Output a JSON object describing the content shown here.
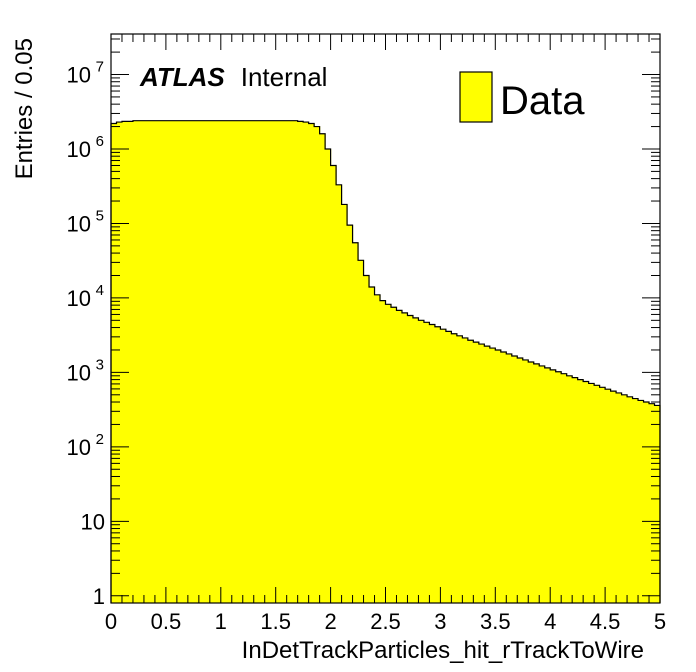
{
  "chart_data": {
    "type": "histogram",
    "xlabel": "InDetTrackParticles_hit_rTrackToWire",
    "ylabel": "Entries / 0.05",
    "yscale": "log",
    "xlim": [
      0,
      5
    ],
    "ylim": [
      0.8,
      35000000
    ],
    "bin_width": 0.05,
    "x_ticks": [
      {
        "value": 0,
        "label": "0"
      },
      {
        "value": 0.5,
        "label": "0.5"
      },
      {
        "value": 1,
        "label": "1"
      },
      {
        "value": 1.5,
        "label": "1.5"
      },
      {
        "value": 2,
        "label": "2"
      },
      {
        "value": 2.5,
        "label": "2.5"
      },
      {
        "value": 3,
        "label": "3"
      },
      {
        "value": 3.5,
        "label": "3.5"
      },
      {
        "value": 4,
        "label": "4"
      },
      {
        "value": 4.5,
        "label": "4.5"
      },
      {
        "value": 5,
        "label": "5"
      }
    ],
    "y_ticks": [
      {
        "value": 1,
        "label": "1",
        "exp": ""
      },
      {
        "value": 10,
        "label": "10",
        "exp": ""
      },
      {
        "value": 100,
        "label": "10",
        "exp": "2"
      },
      {
        "value": 1000,
        "label": "10",
        "exp": "3"
      },
      {
        "value": 10000,
        "label": "10",
        "exp": "4"
      },
      {
        "value": 100000,
        "label": "10",
        "exp": "5"
      },
      {
        "value": 1000000,
        "label": "10",
        "exp": "6"
      },
      {
        "value": 10000000,
        "label": "10",
        "exp": "7"
      }
    ],
    "series": [
      {
        "name": "Data",
        "fill_color": "#ffff00",
        "line_color": "#000000",
        "values": [
          2200000,
          2300000,
          2350000,
          2350000,
          2400000,
          2400000,
          2400000,
          2400000,
          2400000,
          2400000,
          2400000,
          2400000,
          2400000,
          2400000,
          2400000,
          2400000,
          2400000,
          2400000,
          2400000,
          2400000,
          2400000,
          2400000,
          2400000,
          2400000,
          2400000,
          2400000,
          2400000,
          2400000,
          2400000,
          2400000,
          2400000,
          2400000,
          2400000,
          2400000,
          2350000,
          2300000,
          2200000,
          2000000,
          1600000,
          1000000,
          600000,
          330000,
          180000,
          95000,
          55000,
          32000,
          20000,
          14000,
          11000,
          9200,
          8200,
          7500,
          6800,
          6300,
          5800,
          5400,
          5000,
          4700,
          4400,
          4100,
          3800,
          3550,
          3300,
          3100,
          2900,
          2700,
          2550,
          2400,
          2250,
          2120,
          2000,
          1880,
          1770,
          1660,
          1560,
          1470,
          1380,
          1300,
          1220,
          1150,
          1080,
          1020,
          960,
          900,
          850,
          800,
          755,
          710,
          670,
          630,
          595,
          560,
          530,
          500,
          470,
          445,
          420,
          400,
          380,
          360
        ]
      }
    ],
    "legend": {
      "position": "top-right",
      "entries": [
        "Data"
      ]
    }
  },
  "atlas_label": {
    "bold": "ATLAS",
    "text": "Internal"
  },
  "colors": {
    "fill": "#ffff00",
    "line": "#000000",
    "background": "#ffffff"
  }
}
